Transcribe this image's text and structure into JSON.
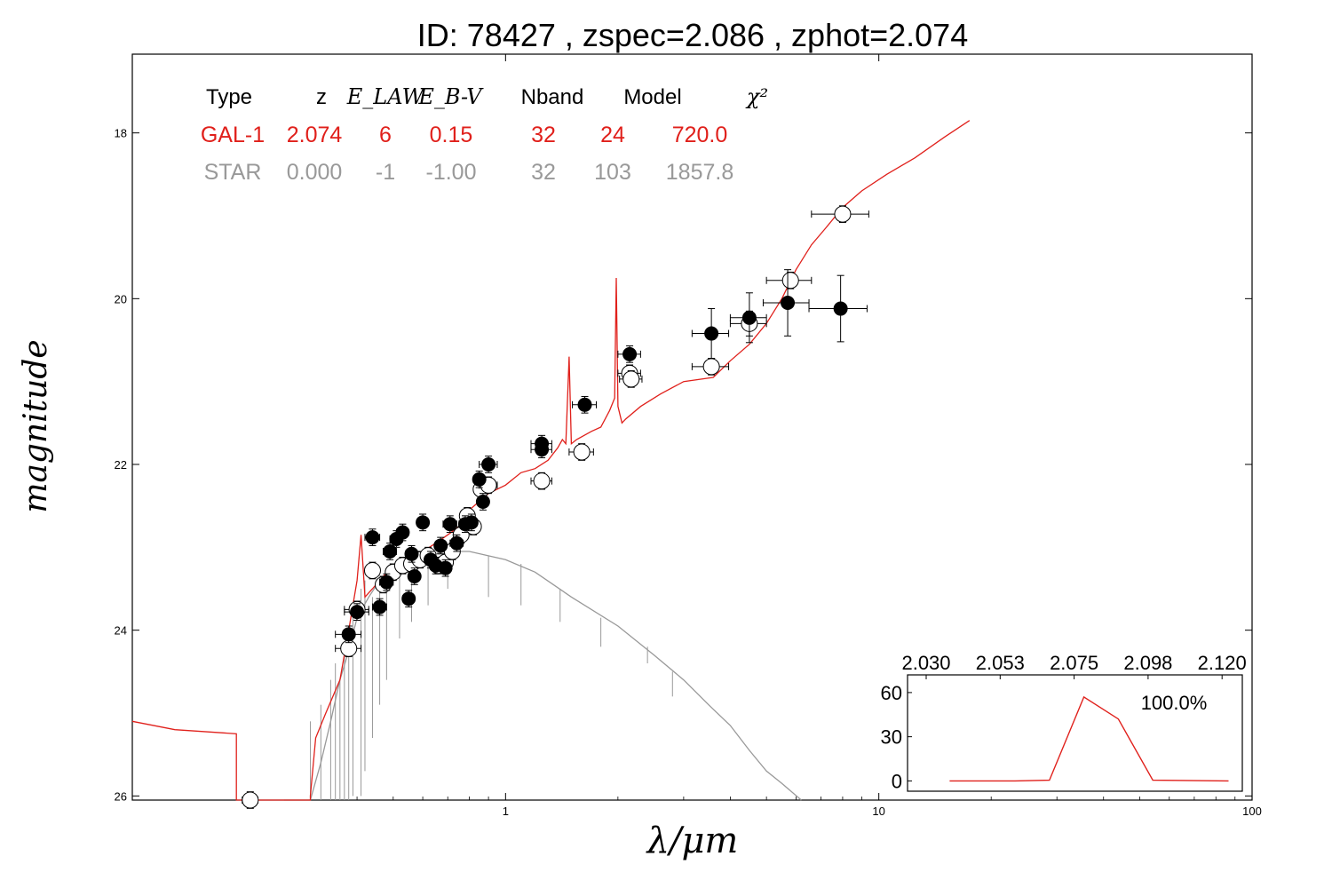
{
  "title": "ID:  78427 , zspec=2.086 , zphot=2.074",
  "chart_data": {
    "type": "scatter",
    "xscale": "log",
    "xlim": [
      0.1,
      100
    ],
    "ylim": [
      26.05,
      17.05
    ],
    "xlabel": "λ/μm",
    "ylabel": "magnitude",
    "xticks": [
      {
        "v": 1,
        "label": "1"
      },
      {
        "v": 10,
        "label": "10"
      },
      {
        "v": 100,
        "label": "100"
      }
    ],
    "yticks": [
      {
        "v": 18,
        "label": "18"
      },
      {
        "v": 20,
        "label": "20"
      },
      {
        "v": 22,
        "label": "22"
      },
      {
        "v": 24,
        "label": "24"
      },
      {
        "v": 26,
        "label": "26"
      }
    ],
    "fit_table": {
      "headers": [
        "Type",
        "z",
        "E_LAW",
        "E_B-V",
        "Nband",
        "Model",
        "χ²"
      ],
      "rows": [
        {
          "cells": [
            "GAL-1",
            "2.074",
            "6",
            "0.15",
            "32",
            "24",
            "720.0"
          ],
          "color": "#e0201b"
        },
        {
          "cells": [
            "STAR",
            "0.000",
            "-1",
            "-1.00",
            "32",
            "103",
            "1857.8"
          ],
          "color": "#999999"
        }
      ]
    },
    "galaxy_model": {
      "name": "GAL-1",
      "color": "#e0201b",
      "points": [
        [
          0.1,
          25.1
        ],
        [
          0.13,
          25.2
        ],
        [
          0.19,
          25.25
        ],
        [
          0.19,
          26.05
        ],
        [
          0.3,
          26.05
        ],
        [
          0.3,
          26.0
        ],
        [
          0.31,
          25.3
        ],
        [
          0.33,
          25.0
        ],
        [
          0.36,
          24.6
        ],
        [
          0.38,
          24.0
        ],
        [
          0.4,
          23.4
        ],
        [
          0.41,
          22.85
        ],
        [
          0.42,
          23.6
        ],
        [
          0.44,
          23.5
        ],
        [
          0.47,
          23.35
        ],
        [
          0.5,
          23.25
        ],
        [
          0.55,
          23.1
        ],
        [
          0.6,
          23.05
        ],
        [
          0.65,
          22.95
        ],
        [
          0.7,
          22.85
        ],
        [
          0.75,
          22.75
        ],
        [
          0.8,
          22.55
        ],
        [
          0.9,
          22.35
        ],
        [
          1.0,
          22.25
        ],
        [
          1.1,
          22.1
        ],
        [
          1.2,
          22.05
        ],
        [
          1.3,
          21.95
        ],
        [
          1.38,
          21.8
        ],
        [
          1.42,
          21.7
        ],
        [
          1.45,
          21.75
        ],
        [
          1.48,
          20.7
        ],
        [
          1.5,
          21.75
        ],
        [
          1.55,
          21.7
        ],
        [
          1.7,
          21.6
        ],
        [
          1.8,
          21.55
        ],
        [
          1.9,
          21.35
        ],
        [
          1.96,
          21.2
        ],
        [
          1.98,
          19.75
        ],
        [
          2.0,
          21.3
        ],
        [
          2.05,
          21.5
        ],
        [
          2.1,
          21.45
        ],
        [
          2.3,
          21.3
        ],
        [
          2.6,
          21.15
        ],
        [
          3.0,
          21.0
        ],
        [
          3.6,
          20.95
        ],
        [
          4.0,
          20.75
        ],
        [
          4.5,
          20.55
        ],
        [
          5.0,
          20.3
        ],
        [
          5.5,
          20.0
        ],
        [
          6.0,
          19.65
        ],
        [
          6.6,
          19.35
        ],
        [
          7.2,
          19.15
        ],
        [
          8.0,
          18.9
        ],
        [
          9.0,
          18.7
        ],
        [
          10.5,
          18.5
        ],
        [
          12.5,
          18.3
        ],
        [
          15.0,
          18.05
        ],
        [
          17.5,
          17.85
        ]
      ]
    },
    "star_model": {
      "name": "STAR",
      "color": "#999999",
      "points": [
        [
          0.255,
          26.05
        ],
        [
          0.3,
          26.05
        ],
        [
          0.32,
          25.6
        ],
        [
          0.34,
          25.1
        ],
        [
          0.36,
          24.6
        ],
        [
          0.38,
          24.25
        ],
        [
          0.4,
          23.85
        ],
        [
          0.43,
          23.6
        ],
        [
          0.46,
          23.4
        ],
        [
          0.5,
          23.25
        ],
        [
          0.55,
          23.15
        ],
        [
          0.6,
          23.1
        ],
        [
          0.7,
          23.05
        ],
        [
          0.8,
          23.05
        ],
        [
          1.0,
          23.15
        ],
        [
          1.2,
          23.3
        ],
        [
          1.5,
          23.6
        ],
        [
          2.0,
          23.95
        ],
        [
          2.5,
          24.3
        ],
        [
          3.0,
          24.6
        ],
        [
          3.5,
          24.9
        ],
        [
          4.0,
          25.15
        ],
        [
          4.5,
          25.45
        ],
        [
          5.0,
          25.7
        ],
        [
          5.5,
          25.85
        ],
        [
          6.2,
          26.05
        ]
      ]
    },
    "observed_filled": [
      {
        "x": 0.38,
        "y": 24.05,
        "xerr": 0.03,
        "yerr": 0.1
      },
      {
        "x": 0.4,
        "y": 23.78,
        "xerr": 0.03,
        "yerr": 0.1
      },
      {
        "x": 0.44,
        "y": 22.88,
        "xerr": 0.02,
        "yerr": 0.1
      },
      {
        "x": 0.46,
        "y": 23.72,
        "xerr": 0.02,
        "yerr": 0.1
      },
      {
        "x": 0.48,
        "y": 23.42,
        "xerr": 0.02,
        "yerr": 0.1
      },
      {
        "x": 0.49,
        "y": 23.05,
        "xerr": 0.02,
        "yerr": 0.1
      },
      {
        "x": 0.51,
        "y": 22.9,
        "xerr": 0.02,
        "yerr": 0.1
      },
      {
        "x": 0.53,
        "y": 22.82,
        "xerr": 0.02,
        "yerr": 0.1
      },
      {
        "x": 0.55,
        "y": 23.62,
        "xerr": 0.02,
        "yerr": 0.1
      },
      {
        "x": 0.56,
        "y": 23.08,
        "xerr": 0.02,
        "yerr": 0.1
      },
      {
        "x": 0.57,
        "y": 23.35,
        "xerr": 0.02,
        "yerr": 0.1
      },
      {
        "x": 0.6,
        "y": 22.7,
        "xerr": 0.02,
        "yerr": 0.1
      },
      {
        "x": 0.63,
        "y": 23.15,
        "xerr": 0.02,
        "yerr": 0.1
      },
      {
        "x": 0.65,
        "y": 23.22,
        "xerr": 0.02,
        "yerr": 0.1
      },
      {
        "x": 0.67,
        "y": 22.98,
        "xerr": 0.02,
        "yerr": 0.1
      },
      {
        "x": 0.69,
        "y": 23.25,
        "xerr": 0.02,
        "yerr": 0.1
      },
      {
        "x": 0.71,
        "y": 22.72,
        "xerr": 0.03,
        "yerr": 0.1
      },
      {
        "x": 0.74,
        "y": 22.95,
        "xerr": 0.03,
        "yerr": 0.1
      },
      {
        "x": 0.78,
        "y": 22.72,
        "xerr": 0.03,
        "yerr": 0.1
      },
      {
        "x": 0.81,
        "y": 22.7,
        "xerr": 0.03,
        "yerr": 0.1
      },
      {
        "x": 0.85,
        "y": 22.18,
        "xerr": 0.03,
        "yerr": 0.1
      },
      {
        "x": 0.87,
        "y": 22.45,
        "xerr": 0.03,
        "yerr": 0.1
      },
      {
        "x": 0.9,
        "y": 22.0,
        "xerr": 0.05,
        "yerr": 0.1
      },
      {
        "x": 1.25,
        "y": 21.75,
        "xerr": 0.08,
        "yerr": 0.1
      },
      {
        "x": 1.25,
        "y": 21.82,
        "xerr": 0.08,
        "yerr": 0.1
      },
      {
        "x": 1.63,
        "y": 21.28,
        "xerr": 0.12,
        "yerr": 0.1
      },
      {
        "x": 2.15,
        "y": 20.67,
        "xerr": 0.15,
        "yerr": 0.1
      },
      {
        "x": 3.56,
        "y": 20.42,
        "xerr": 0.4,
        "yerr": 0.3
      },
      {
        "x": 4.5,
        "y": 20.23,
        "xerr": 0.5,
        "yerr": 0.3
      },
      {
        "x": 5.7,
        "y": 20.05,
        "xerr": 0.8,
        "yerr": 0.4
      },
      {
        "x": 7.9,
        "y": 20.12,
        "xerr": 1.4,
        "yerr": 0.4
      }
    ],
    "observed_open": [
      {
        "x": 0.207,
        "y": 26.05,
        "xerr": 0.01,
        "yerr": 0.1
      },
      {
        "x": 0.38,
        "y": 24.22,
        "xerr": 0.03,
        "yerr": 0.1
      },
      {
        "x": 0.4,
        "y": 23.75,
        "xerr": 0.03,
        "yerr": 0.1
      },
      {
        "x": 0.44,
        "y": 23.28,
        "xerr": 0.02,
        "yerr": 0.1
      },
      {
        "x": 0.47,
        "y": 23.45,
        "xerr": 0.02,
        "yerr": 0.1
      },
      {
        "x": 0.5,
        "y": 23.3,
        "xerr": 0.02,
        "yerr": 0.1
      },
      {
        "x": 0.53,
        "y": 23.22,
        "xerr": 0.02,
        "yerr": 0.1
      },
      {
        "x": 0.56,
        "y": 23.2,
        "xerr": 0.02,
        "yerr": 0.1
      },
      {
        "x": 0.59,
        "y": 23.15,
        "xerr": 0.02,
        "yerr": 0.1
      },
      {
        "x": 0.62,
        "y": 23.1,
        "xerr": 0.02,
        "yerr": 0.1
      },
      {
        "x": 0.66,
        "y": 23.22,
        "xerr": 0.02,
        "yerr": 0.1
      },
      {
        "x": 0.69,
        "y": 23.18,
        "xerr": 0.02,
        "yerr": 0.1
      },
      {
        "x": 0.72,
        "y": 23.05,
        "xerr": 0.03,
        "yerr": 0.1
      },
      {
        "x": 0.76,
        "y": 22.85,
        "xerr": 0.03,
        "yerr": 0.1
      },
      {
        "x": 0.79,
        "y": 22.62,
        "xerr": 0.03,
        "yerr": 0.1
      },
      {
        "x": 0.82,
        "y": 22.75,
        "xerr": 0.03,
        "yerr": 0.1
      },
      {
        "x": 0.86,
        "y": 22.3,
        "xerr": 0.03,
        "yerr": 0.1
      },
      {
        "x": 0.9,
        "y": 22.25,
        "xerr": 0.05,
        "yerr": 0.1
      },
      {
        "x": 1.25,
        "y": 22.2,
        "xerr": 0.08,
        "yerr": 0.1
      },
      {
        "x": 1.6,
        "y": 21.85,
        "xerr": 0.12,
        "yerr": 0.1
      },
      {
        "x": 2.15,
        "y": 20.9,
        "xerr": 0.15,
        "yerr": 0.1
      },
      {
        "x": 2.17,
        "y": 20.97,
        "xerr": 0.15,
        "yerr": 0.1
      },
      {
        "x": 3.56,
        "y": 20.82,
        "xerr": 0.4,
        "yerr": 0.1
      },
      {
        "x": 4.5,
        "y": 20.3,
        "xerr": 0.5,
        "yerr": 0.15
      },
      {
        "x": 5.8,
        "y": 19.78,
        "xerr": 0.8,
        "yerr": 0.1
      },
      {
        "x": 8.0,
        "y": 18.98,
        "xerr": 1.4,
        "yerr": 0.1
      }
    ],
    "inset": {
      "type": "line",
      "color": "#e0201b",
      "xlim": [
        2.03,
        2.12
      ],
      "ylim": [
        -7,
        72
      ],
      "xticks": [
        "2.030",
        "2.053",
        "2.075",
        "2.098",
        "2.120"
      ],
      "yticks": [
        0,
        30,
        60
      ],
      "annotation": "100.0%",
      "x": [
        2.035,
        2.054,
        2.064,
        2.074,
        2.084,
        2.094,
        2.116
      ],
      "y": [
        0,
        0,
        0.5,
        57,
        42,
        0.5,
        0
      ]
    }
  }
}
